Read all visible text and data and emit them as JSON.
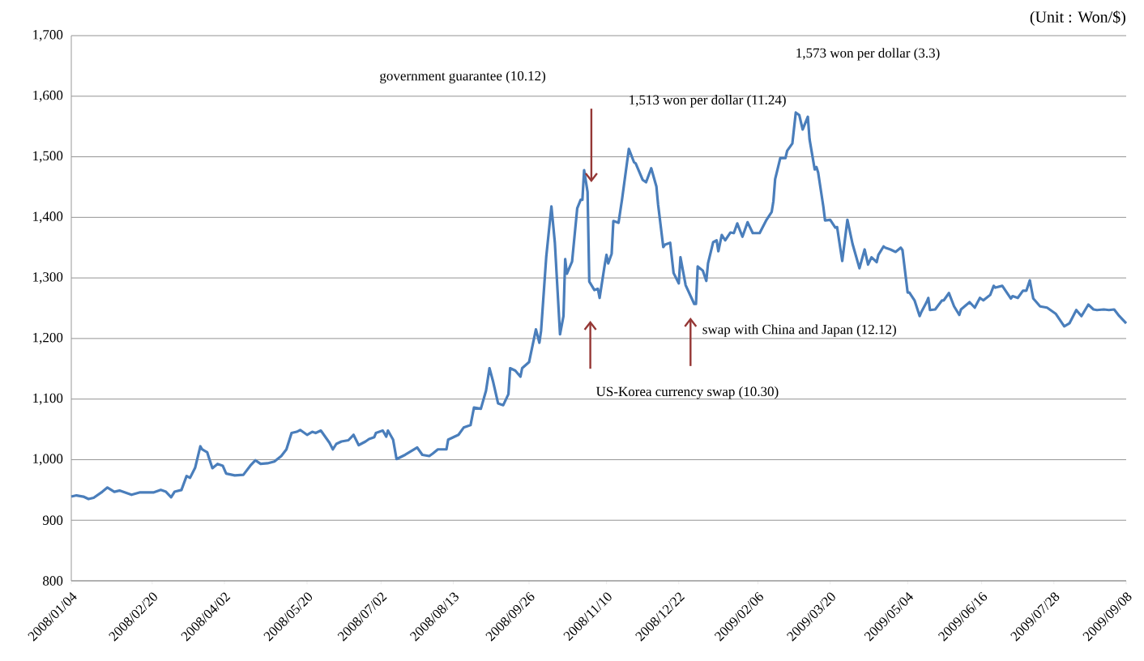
{
  "chart_data": {
    "type": "line",
    "color": "#4a7ebb",
    "grid": "y",
    "annotations": [
      "(Unit : Won/$)",
      "government guarantee (10.12)",
      "1,513 won per dollar (11.24)",
      "1,573 won per dollar (3.3)",
      "US-Korea currency swap (10.30)",
      "swap with China and Japan (12.12)"
    ],
    "xlim": [
      "2008-01-04",
      "2009-09-08"
    ],
    "ylim": [
      800,
      1700
    ],
    "xticks": [
      {
        "value": "2008-01-04",
        "label": "2008/01/04"
      },
      {
        "value": "2008-02-20",
        "label": "2008/02/20"
      },
      {
        "value": "2008-04-02",
        "label": "2008/04/02"
      },
      {
        "value": "2008-05-20",
        "label": "2008/05/20"
      },
      {
        "value": "2008-07-02",
        "label": "2008/07/02"
      },
      {
        "value": "2008-08-13",
        "label": "2008/08/13"
      },
      {
        "value": "2008-09-26",
        "label": "2008/09/26"
      },
      {
        "value": "2008-11-10",
        "label": "2008/11/10"
      },
      {
        "value": "2008-12-22",
        "label": "2008/12/22"
      },
      {
        "value": "2009-02-06",
        "label": "2009/02/06"
      },
      {
        "value": "2009-03-20",
        "label": "2009/03/20"
      },
      {
        "value": "2009-05-04",
        "label": "2009/05/04"
      },
      {
        "value": "2009-06-16",
        "label": "2009/06/16"
      },
      {
        "value": "2009-07-28",
        "label": "2009/07/28"
      },
      {
        "value": "2009-09-08",
        "label": "2009/09/08"
      }
    ],
    "yticks": [
      800,
      900,
      {
        "value": 1000,
        "label": "1,000"
      },
      {
        "value": 1100,
        "label": "1,100"
      },
      {
        "value": 1200,
        "label": "1,200"
      },
      {
        "value": 1300,
        "label": "1,300"
      },
      {
        "value": 1400,
        "label": "1,400"
      },
      {
        "value": 1500,
        "label": "1,500"
      },
      {
        "value": 1600,
        "label": "1,600"
      },
      {
        "value": 1700,
        "label": "1,700"
      }
    ],
    "x": [
      "2008-01-04",
      "2008-01-07",
      "2008-01-11",
      "2008-01-14",
      "2008-01-17",
      "2008-01-22",
      "2008-01-25",
      "2008-01-29",
      "2008-02-01",
      "2008-02-05",
      "2008-02-08",
      "2008-02-13",
      "2008-02-17",
      "2008-02-21",
      "2008-02-25",
      "2008-02-28",
      "2008-03-02",
      "2008-03-04",
      "2008-03-08",
      "2008-03-11",
      "2008-03-13",
      "2008-03-16",
      "2008-03-19",
      "2008-03-20",
      "2008-03-23",
      "2008-03-24",
      "2008-03-26",
      "2008-03-29",
      "2008-04-01",
      "2008-04-03",
      "2008-04-08",
      "2008-04-13",
      "2008-04-17",
      "2008-04-20",
      "2008-04-23",
      "2008-04-27",
      "2008-05-01",
      "2008-05-05",
      "2008-05-08",
      "2008-05-11",
      "2008-05-14",
      "2008-05-16",
      "2008-05-20",
      "2008-05-23",
      "2008-05-25",
      "2008-05-28",
      "2008-06-02",
      "2008-06-04",
      "2008-06-06",
      "2008-06-09",
      "2008-06-13",
      "2008-06-16",
      "2008-06-19",
      "2008-06-23",
      "2008-06-25",
      "2008-06-28",
      "2008-06-29",
      "2008-07-03",
      "2008-07-05",
      "2008-07-06",
      "2008-07-09",
      "2008-07-11",
      "2008-07-16",
      "2008-07-23",
      "2008-07-26",
      "2008-07-30",
      "2008-08-01",
      "2008-08-04",
      "2008-08-09",
      "2008-08-10",
      "2008-08-13",
      "2008-08-16",
      "2008-08-19",
      "2008-08-23",
      "2008-08-25",
      "2008-08-29",
      "2008-09-01",
      "2008-09-03",
      "2008-09-05",
      "2008-09-08",
      "2008-09-11",
      "2008-09-14",
      "2008-09-15",
      "2008-09-18",
      "2008-09-21",
      "2008-09-22",
      "2008-09-26",
      "2008-09-30",
      "2008-10-02",
      "2008-10-03",
      "2008-10-06",
      "2008-10-09",
      "2008-10-11",
      "2008-10-14",
      "2008-10-16",
      "2008-10-17",
      "2008-10-18",
      "2008-10-21",
      "2008-10-24",
      "2008-10-26",
      "2008-10-27",
      "2008-10-28",
      "2008-10-30",
      "2008-10-31",
      "2008-11-03",
      "2008-11-05",
      "2008-11-06",
      "2008-11-09",
      "2008-11-10",
      "2008-11-11",
      "2008-11-13",
      "2008-11-14",
      "2008-11-17",
      "2008-11-19",
      "2008-11-23",
      "2008-11-26",
      "2008-11-27",
      "2008-12-01",
      "2008-12-03",
      "2008-12-06",
      "2008-12-09",
      "2008-12-10",
      "2008-12-13",
      "2008-12-14",
      "2008-12-17",
      "2008-12-19",
      "2008-12-22",
      "2008-12-23",
      "2008-12-26",
      "2008-12-31",
      "2009-01-01",
      "2009-01-02",
      "2009-01-05",
      "2009-01-07",
      "2009-01-08",
      "2009-01-11",
      "2009-01-13",
      "2009-01-14",
      "2009-01-16",
      "2009-01-18",
      "2009-01-21",
      "2009-01-23",
      "2009-01-25",
      "2009-01-28",
      "2009-01-31",
      "2009-02-03",
      "2009-02-07",
      "2009-02-11",
      "2009-02-14",
      "2009-02-15",
      "2009-02-16",
      "2009-02-19",
      "2009-02-22",
      "2009-02-23",
      "2009-02-26",
      "2009-02-28",
      "2009-03-02",
      "2009-03-04",
      "2009-03-07",
      "2009-03-08",
      "2009-03-11",
      "2009-03-12",
      "2009-03-13",
      "2009-03-16",
      "2009-03-17",
      "2009-03-20",
      "2009-03-23",
      "2009-03-24",
      "2009-03-27",
      "2009-03-30",
      "2009-04-02",
      "2009-04-06",
      "2009-04-09",
      "2009-04-11",
      "2009-04-13",
      "2009-04-16",
      "2009-04-17",
      "2009-04-20",
      "2009-04-21",
      "2009-04-24",
      "2009-04-27",
      "2009-04-30",
      "2009-05-01",
      "2009-05-04",
      "2009-05-05",
      "2009-05-08",
      "2009-05-11",
      "2009-05-12",
      "2009-05-15",
      "2009-05-16",
      "2009-05-17",
      "2009-05-20",
      "2009-05-24",
      "2009-05-25",
      "2009-05-28",
      "2009-05-31",
      "2009-06-03",
      "2009-06-04",
      "2009-06-09",
      "2009-06-12",
      "2009-06-15",
      "2009-06-17",
      "2009-06-21",
      "2009-06-23",
      "2009-06-24",
      "2009-06-28",
      "2009-07-03",
      "2009-07-04",
      "2009-07-07",
      "2009-07-10",
      "2009-07-12",
      "2009-07-14",
      "2009-07-16",
      "2009-07-20",
      "2009-07-24",
      "2009-07-29",
      "2009-08-03",
      "2009-08-06",
      "2009-08-10",
      "2009-08-13",
      "2009-08-17",
      "2009-08-20",
      "2009-08-22",
      "2009-08-26",
      "2009-08-29",
      "2009-09-01",
      "2009-09-04",
      "2009-09-08"
    ],
    "values": [
      939,
      941,
      939,
      935,
      937,
      947,
      954,
      947,
      949,
      945,
      942,
      946,
      946,
      946,
      950,
      947,
      938,
      947,
      950,
      973,
      970,
      987,
      1022,
      1017,
      1012,
      1003,
      986,
      993,
      990,
      977,
      974,
      975,
      990,
      999,
      993,
      994,
      997,
      1006,
      1017,
      1044,
      1046,
      1049,
      1041,
      1046,
      1044,
      1048,
      1028,
      1017,
      1026,
      1030,
      1032,
      1041,
      1024,
      1030,
      1034,
      1037,
      1044,
      1048,
      1038,
      1048,
      1033,
      1001,
      1008,
      1020,
      1008,
      1006,
      1010,
      1017,
      1017,
      1033,
      1037,
      1041,
      1053,
      1057,
      1086,
      1084,
      1114,
      1151,
      1130,
      1093,
      1090,
      1108,
      1151,
      1147,
      1137,
      1151,
      1161,
      1215,
      1193,
      1213,
      1335,
      1418,
      1358,
      1207,
      1237,
      1331,
      1307,
      1327,
      1415,
      1429,
      1429,
      1478,
      1442,
      1294,
      1280,
      1282,
      1267,
      1322,
      1338,
      1324,
      1340,
      1394,
      1391,
      1429,
      1513,
      1491,
      1489,
      1462,
      1458,
      1481,
      1451,
      1421,
      1351,
      1355,
      1358,
      1308,
      1291,
      1334,
      1288,
      1257,
      1257,
      1319,
      1312,
      1295,
      1324,
      1359,
      1362,
      1344,
      1371,
      1362,
      1375,
      1374,
      1390,
      1368,
      1392,
      1374,
      1374,
      1396,
      1409,
      1427,
      1463,
      1498,
      1498,
      1510,
      1522,
      1573,
      1569,
      1545,
      1566,
      1529,
      1479,
      1483,
      1474,
      1418,
      1395,
      1396,
      1383,
      1384,
      1328,
      1396,
      1356,
      1316,
      1347,
      1322,
      1334,
      1326,
      1338,
      1352,
      1350,
      1347,
      1343,
      1350,
      1346,
      1276,
      1276,
      1263,
      1237,
      1244,
      1260,
      1267,
      1247,
      1248,
      1263,
      1263,
      1275,
      1253,
      1239,
      1248,
      1260,
      1251,
      1267,
      1263,
      1272,
      1287,
      1284,
      1287,
      1266,
      1270,
      1267,
      1279,
      1279,
      1296,
      1266,
      1253,
      1251,
      1241,
      1220,
      1225,
      1247,
      1237,
      1256,
      1248,
      1247,
      1248,
      1247,
      1248,
      1237,
      1225
    ]
  }
}
